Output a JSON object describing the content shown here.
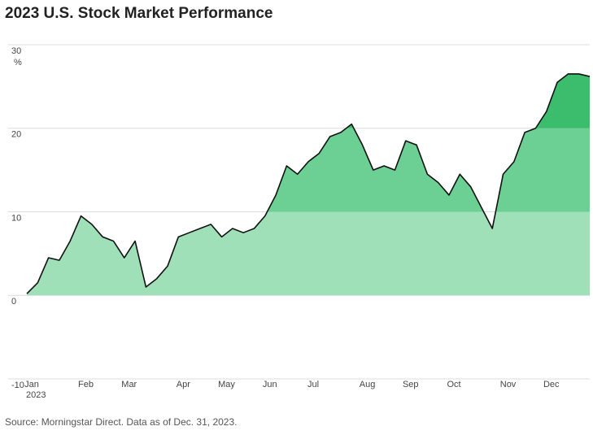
{
  "chart_data": {
    "type": "area",
    "title": "2023 U.S. Stock Market Performance",
    "y_unit": "%",
    "x_year_label": "2023",
    "source": "Source: Morningstar Direct. Data as of Dec. 31, 2023.",
    "categories": [
      "Jan",
      null,
      null,
      null,
      null,
      "Feb",
      null,
      null,
      null,
      "Mar",
      null,
      null,
      null,
      null,
      "Apr",
      null,
      null,
      null,
      "May",
      null,
      null,
      null,
      "Jun",
      null,
      null,
      null,
      "Jul",
      null,
      null,
      null,
      null,
      "Aug",
      null,
      null,
      null,
      "Sep",
      null,
      null,
      null,
      "Oct",
      null,
      null,
      null,
      null,
      "Nov",
      null,
      null,
      null,
      "Dec",
      null,
      null,
      null,
      null
    ],
    "values": [
      0.2,
      1.5,
      4.5,
      4.2,
      6.5,
      9.5,
      8.5,
      7,
      6.5,
      4.5,
      6.5,
      1,
      2,
      3.5,
      7,
      7.5,
      8,
      8.5,
      7,
      8,
      7.5,
      8,
      9.5,
      12,
      15.5,
      14.5,
      16,
      17,
      19,
      19.5,
      20.5,
      18,
      15,
      15.5,
      15,
      18.5,
      18,
      14.5,
      13.5,
      12,
      14.5,
      13,
      10.5,
      8,
      14.5,
      16,
      19.5,
      20,
      22,
      25.5,
      26.5,
      26.5,
      26.2
    ],
    "line_color": "#111111",
    "bands": [
      {
        "from": 0,
        "to": 10,
        "color": "#a0e0b9"
      },
      {
        "from": 10,
        "to": 20,
        "color": "#6ccf93"
      },
      {
        "from": 20,
        "to": 30,
        "color": "#3cbd6d"
      }
    ],
    "ylim": [
      -10,
      30
    ],
    "yticks": [
      -10,
      0,
      10,
      20,
      30
    ],
    "grid": true
  }
}
